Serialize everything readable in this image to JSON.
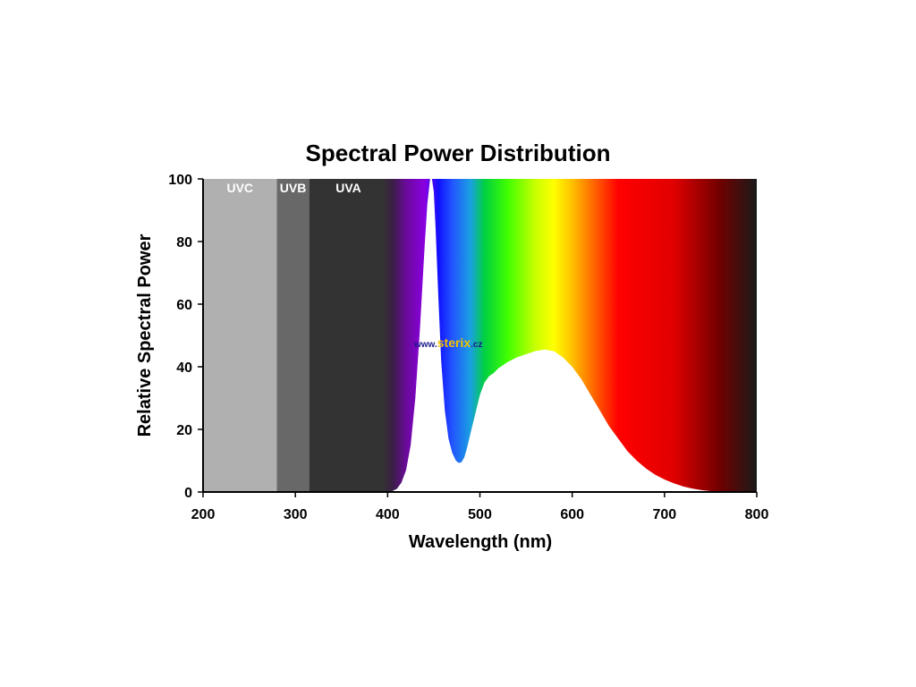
{
  "chart_data": {
    "type": "area",
    "title": "Spectral Power Distribution",
    "xlabel": "Wavelength (nm)",
    "ylabel": "Relative Spectral Power",
    "xlim": [
      200,
      800
    ],
    "ylim": [
      0,
      100
    ],
    "xticks": [
      200,
      300,
      400,
      500,
      600,
      700,
      800
    ],
    "yticks": [
      0,
      20,
      40,
      60,
      80,
      100
    ],
    "grid": false,
    "bands": [
      {
        "label": "UVC",
        "range": [
          200,
          280
        ],
        "color": "#b0b0b0"
      },
      {
        "label": "UVB",
        "range": [
          280,
          315
        ],
        "color": "#686868"
      },
      {
        "label": "UVA",
        "range": [
          315,
          400
        ],
        "color": "#333333"
      }
    ],
    "spectrum_colors": [
      {
        "nm": 395,
        "color": "#333333"
      },
      {
        "nm": 405,
        "color": "#3a1f44"
      },
      {
        "nm": 420,
        "color": "#6a0a9a"
      },
      {
        "nm": 440,
        "color": "#8a00e0"
      },
      {
        "nm": 455,
        "color": "#1010ff"
      },
      {
        "nm": 470,
        "color": "#2255ff"
      },
      {
        "nm": 490,
        "color": "#1aa0e0"
      },
      {
        "nm": 505,
        "color": "#00d040"
      },
      {
        "nm": 530,
        "color": "#40ff00"
      },
      {
        "nm": 560,
        "color": "#c8ff00"
      },
      {
        "nm": 580,
        "color": "#ffff00"
      },
      {
        "nm": 600,
        "color": "#ffc000"
      },
      {
        "nm": 625,
        "color": "#ff6000"
      },
      {
        "nm": 650,
        "color": "#ff0000"
      },
      {
        "nm": 710,
        "color": "#e00000"
      },
      {
        "nm": 760,
        "color": "#700000"
      },
      {
        "nm": 800,
        "color": "#1a1a1a"
      }
    ],
    "series": [
      {
        "x": [
          400,
          405,
          410,
          415,
          420,
          425,
          430,
          435,
          440,
          443,
          446,
          448,
          450,
          452,
          455,
          458,
          462,
          466,
          470,
          474,
          477,
          480,
          483,
          486,
          490,
          495,
          500,
          505,
          510,
          515,
          520,
          530,
          540,
          550,
          560,
          570,
          580,
          590,
          600,
          610,
          620,
          630,
          640,
          650,
          660,
          670,
          680,
          690,
          700,
          710,
          720,
          730,
          740,
          750,
          760,
          780,
          800
        ],
        "y": [
          0,
          0.3,
          1,
          3,
          7,
          15,
          30,
          52,
          78,
          92,
          100,
          100,
          96,
          84,
          62,
          42,
          26,
          17,
          12.5,
          10,
          9.3,
          9.5,
          11,
          14,
          19,
          25,
          31,
          35,
          37,
          38,
          39.5,
          41.5,
          43,
          44,
          45,
          45.5,
          45,
          43,
          40,
          36,
          31,
          26,
          21,
          17,
          13,
          10,
          7.5,
          5.5,
          4,
          2.8,
          1.8,
          1.1,
          0.6,
          0.3,
          0.1,
          0,
          0
        ]
      }
    ]
  },
  "watermark": {
    "prefix": "www.",
    "brand": "sterix",
    "suffix": ".cz"
  }
}
